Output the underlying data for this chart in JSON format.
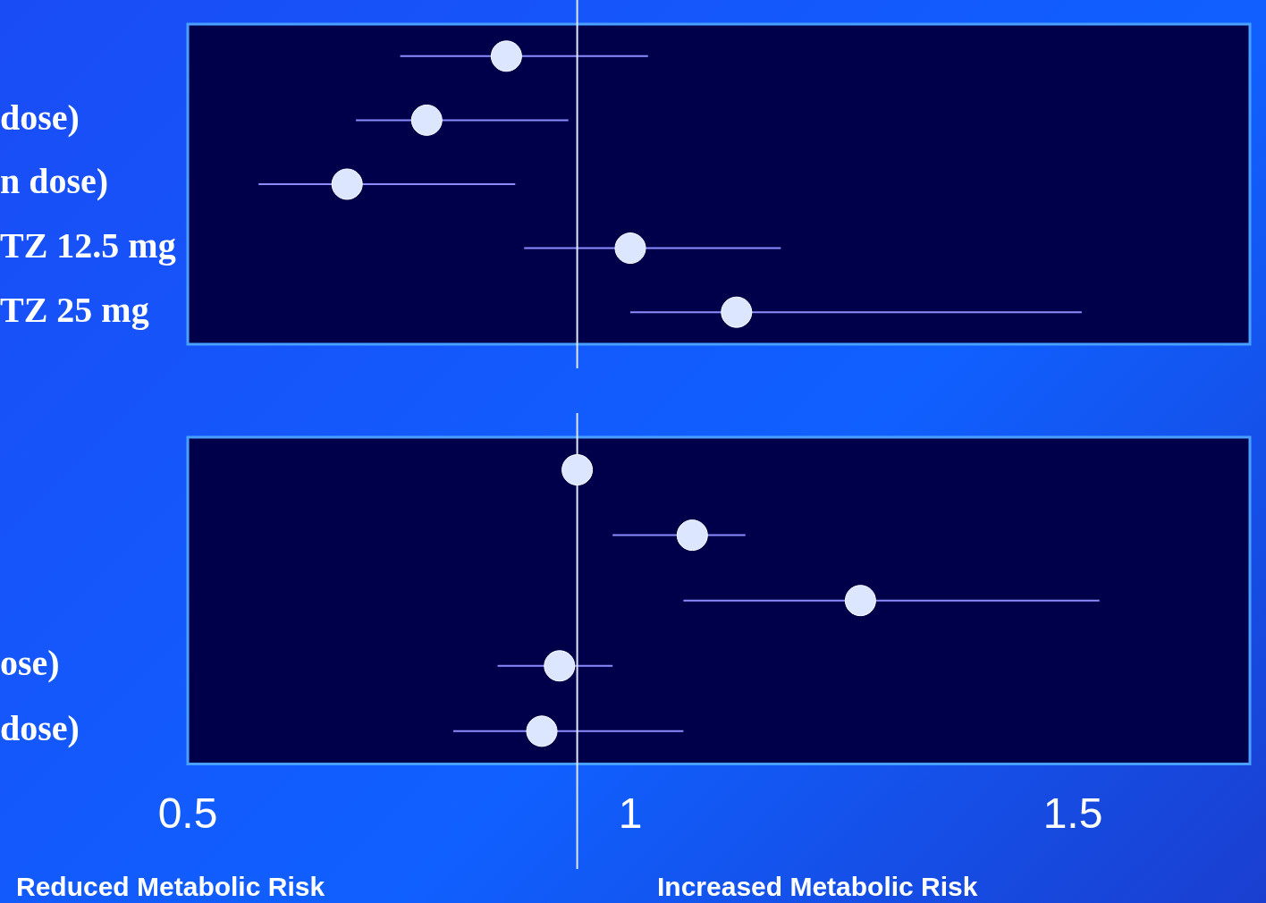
{
  "chart_data": [
    {
      "type": "scatter",
      "orientation": "horizontal",
      "categories": [
        null,
        "dose)",
        "n dose)",
        "TZ 12.5 mg",
        "TZ 25 mg"
      ],
      "values": [
        0.86,
        0.77,
        0.68,
        1.0,
        1.12
      ],
      "errors": [
        [
          0.74,
          1.02
        ],
        [
          0.69,
          0.93
        ],
        [
          0.58,
          0.87
        ],
        [
          0.88,
          1.17
        ],
        [
          1.0,
          1.51
        ]
      ],
      "color": "#dce6ff",
      "marker": "circle",
      "xlim": [
        0.5,
        1.7
      ],
      "xticks": [
        0.5,
        1,
        1.5
      ],
      "tick_labels": "y",
      "ref_lines": [
        {
          "axis": "x",
          "value": 0.94,
          "color": "#e0e8ff"
        }
      ]
    },
    {
      "type": "scatter",
      "orientation": "horizontal",
      "categories": [
        null,
        null,
        null,
        "ose)",
        "dose)"
      ],
      "values": [
        0.94,
        1.07,
        1.26,
        0.92,
        0.9
      ],
      "errors": [
        null,
        [
          0.98,
          1.13
        ],
        [
          1.06,
          1.53
        ],
        [
          0.85,
          0.98
        ],
        [
          0.8,
          1.06
        ]
      ],
      "color": "#dce6ff",
      "marker": "circle",
      "xlim": [
        0.5,
        1.7
      ],
      "xticks": [
        0.5,
        1,
        1.5
      ],
      "ref_lines": [
        {
          "axis": "x",
          "value": 0.94,
          "color": "#e0e8ff"
        }
      ],
      "annotations": [
        "Reduced Metabolic Risk",
        "Increased Metabolic Risk"
      ]
    }
  ]
}
